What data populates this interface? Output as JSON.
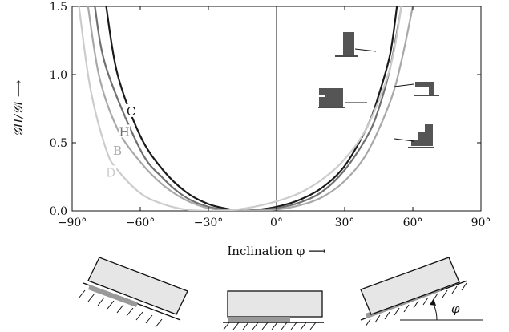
{
  "chart_data": {
    "type": "line",
    "xlabel": "Inclination φ ⟶",
    "ylabel": "𝒢II/𝒢I ⟶",
    "xlim": [
      -90,
      90
    ],
    "ylim": [
      0,
      1.5
    ],
    "x_ticks": [
      -90,
      -60,
      -30,
      0,
      30,
      60,
      90
    ],
    "x_tick_labels": [
      "−90°",
      "−60°",
      "−30°",
      "0°",
      "30°",
      "60°",
      "90°"
    ],
    "y_ticks": [
      0,
      0.5,
      1.0,
      1.5
    ],
    "y_tick_labels": [
      "0.0",
      "0.5",
      "1.0",
      "1.5"
    ],
    "grid": false,
    "series": [
      {
        "name": "C",
        "color": "#1a1a1a",
        "x": [
          -75,
          -70,
          -60,
          -50,
          -40,
          -30,
          -20,
          -15,
          -10,
          0,
          10,
          20,
          30,
          40,
          45,
          50,
          53
        ],
        "y": [
          1.5,
          1.0,
          0.55,
          0.3,
          0.14,
          0.05,
          0.01,
          0.0,
          0.005,
          0.03,
          0.08,
          0.17,
          0.33,
          0.62,
          0.85,
          1.15,
          1.5
        ]
      },
      {
        "name": "H",
        "color": "#707070",
        "x": [
          -80,
          -75,
          -60,
          -50,
          -40,
          -30,
          -20,
          -18,
          -10,
          0,
          10,
          20,
          30,
          40,
          45,
          50,
          55
        ],
        "y": [
          1.5,
          1.05,
          0.45,
          0.24,
          0.1,
          0.03,
          0.005,
          0.0,
          0.005,
          0.02,
          0.06,
          0.14,
          0.3,
          0.55,
          0.75,
          1.05,
          1.5
        ]
      },
      {
        "name": "B",
        "color": "#a8a8a8",
        "x": [
          -83,
          -78,
          -70,
          -60,
          -50,
          -40,
          -30,
          -20,
          -15,
          -10,
          0,
          10,
          20,
          30,
          40,
          50,
          55,
          60
        ],
        "y": [
          1.5,
          0.98,
          0.6,
          0.36,
          0.19,
          0.08,
          0.02,
          0.002,
          0.0,
          0.002,
          0.01,
          0.04,
          0.1,
          0.22,
          0.43,
          0.8,
          1.1,
          1.5
        ]
      },
      {
        "name": "D",
        "color": "#cccccc",
        "x": [
          -87,
          -82,
          -75,
          -70,
          -60,
          -50,
          -40,
          -30,
          -25,
          -20,
          -10,
          0,
          10,
          20,
          30,
          40,
          50,
          55
        ],
        "y": [
          1.5,
          0.9,
          0.45,
          0.3,
          0.13,
          0.05,
          0.01,
          0.0,
          0.0,
          0.005,
          0.03,
          0.07,
          0.13,
          0.23,
          0.38,
          0.62,
          1.05,
          1.5
        ]
      }
    ],
    "series_label_positions": [
      {
        "name": "C",
        "x": -64,
        "y": 0.73
      },
      {
        "name": "H",
        "x": -67,
        "y": 0.58
      },
      {
        "name": "B",
        "x": -70,
        "y": 0.44
      },
      {
        "name": "D",
        "x": -73,
        "y": 0.28
      }
    ]
  },
  "annotations": {
    "phi_label": "φ"
  }
}
